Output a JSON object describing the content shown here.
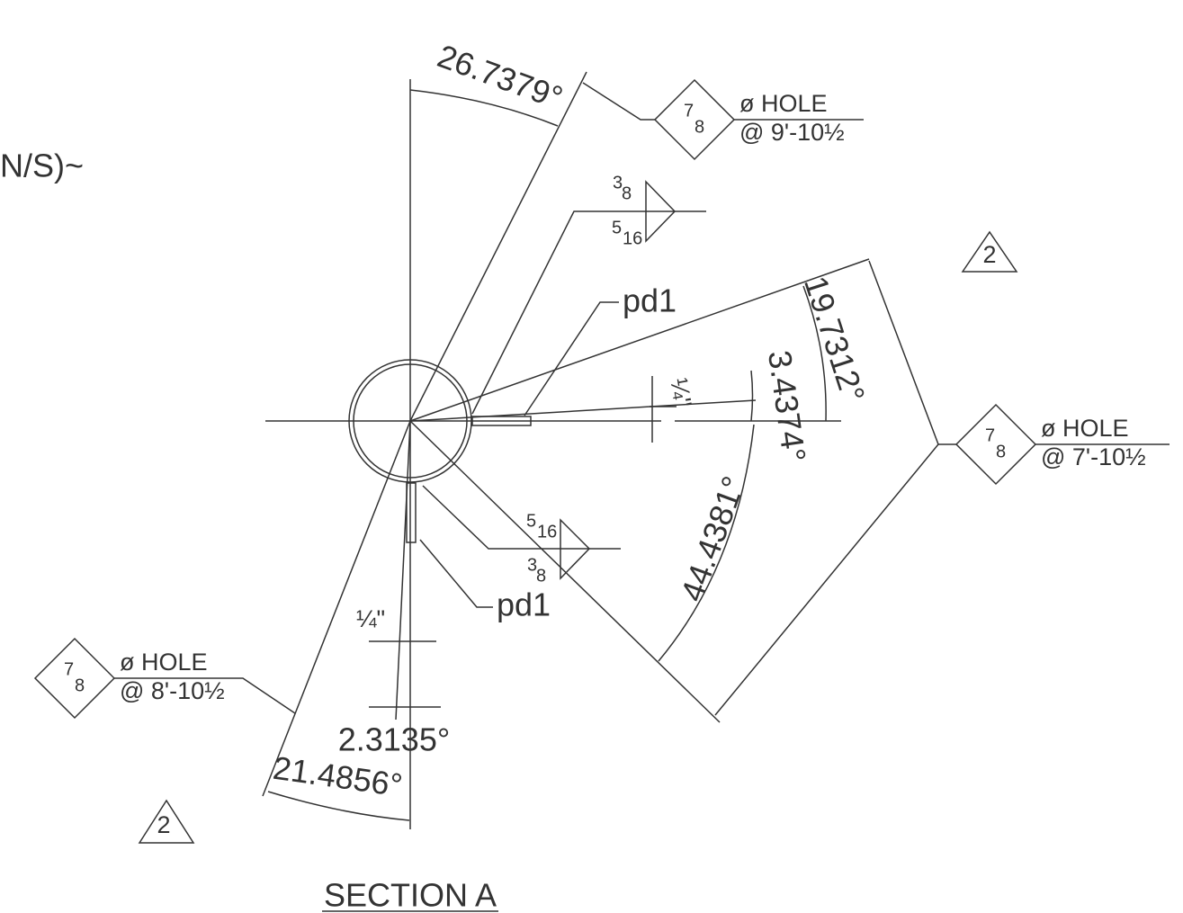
{
  "partial_label": "N/S)~",
  "angles": [
    "26.7379°",
    "19.7312°",
    "3.4374°",
    "44.4381°",
    "2.3135°",
    "21.4856°"
  ],
  "holes": [
    {
      "size_num": "7",
      "size_den": "8",
      "label": "ø HOLE",
      "location": "@ 9'-10½"
    },
    {
      "size_num": "7",
      "size_den": "8",
      "label": "ø HOLE",
      "location": "@ 7'-10½"
    },
    {
      "size_num": "7",
      "size_den": "8",
      "label": "ø HOLE",
      "location": "@ 8'-10½"
    }
  ],
  "welds": [
    {
      "top_num": "3",
      "top_den": "8",
      "bottom_num": "5",
      "bottom_den": "16"
    },
    {
      "top_num": "5",
      "top_den": "16",
      "bottom_num": "3",
      "bottom_den": "8"
    }
  ],
  "plates": [
    "pd1",
    "pd1"
  ],
  "revisions": [
    "2",
    "2"
  ],
  "gaps": [
    "¼\"",
    "¼\""
  ],
  "section_title": "SECTION A"
}
